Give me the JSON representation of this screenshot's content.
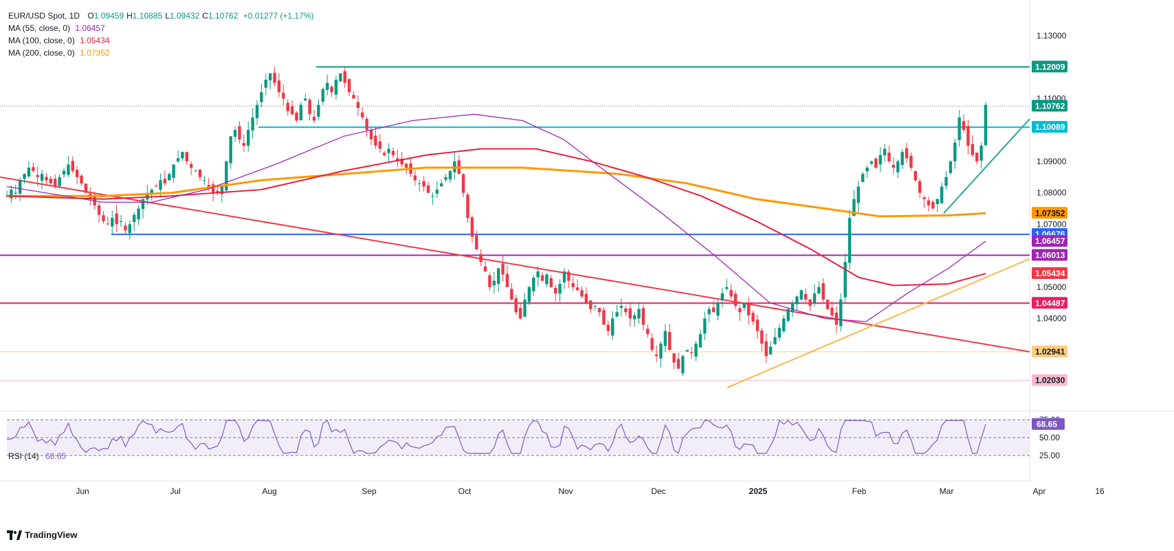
{
  "header": {
    "symbol": "EUR/USD Spot, 1D",
    "ohlc": [
      {
        "key": "O",
        "value": "1.09459"
      },
      {
        "key": "H",
        "value": "1.10885"
      },
      {
        "key": "L",
        "value": "1.09432"
      },
      {
        "key": "C",
        "value": "1.10762"
      }
    ],
    "change": "+0.01277 (+1.17%)",
    "color": "#089981"
  },
  "indicators": [
    {
      "label": "MA (55, close, 0)",
      "value": "1.06457",
      "color": "#9c27b0"
    },
    {
      "label": "MA (100, close, 0)",
      "value": "1.05434",
      "color": "#e91e3d"
    },
    {
      "label": "MA (200, close, 0)",
      "value": "1.07352",
      "color": "#ff9800"
    }
  ],
  "rsi": {
    "label": "RSI (14)",
    "value": "68.65",
    "color": "#7e57c2"
  },
  "brand": "TradingView",
  "chart_data": {
    "type": "candlestick",
    "instrument": "EUR/USD",
    "timeframe": "1D",
    "ylim": [
      1.018,
      1.135
    ],
    "price_ticks": [
      "1.13000",
      "1.11000",
      "1.09000",
      "1.08000",
      "1.07000",
      "1.05000",
      "1.04000"
    ],
    "time_ticks": [
      "Jun",
      "Jul",
      "Aug",
      "Sep",
      "Oct",
      "Nov",
      "Dec",
      "2025",
      "Feb",
      "Mar",
      "Apr",
      "16"
    ],
    "last_price": "1.10762",
    "levels": [
      {
        "value": "1.12009",
        "color": "#089981"
      },
      {
        "value": "1.10089",
        "color": "#00bcd4"
      },
      {
        "value": "1.06676",
        "color": "#2962ff"
      },
      {
        "value": "1.06013",
        "color": "#9c27b0"
      },
      {
        "value": "1.04487",
        "color": "#e91e63"
      },
      {
        "value": "1.02941",
        "color": "#ffcc80"
      },
      {
        "value": "1.02030",
        "color": "#f8bbd0"
      }
    ],
    "moving_averages": [
      {
        "period": 55,
        "value": "1.06457",
        "color": "#9c27b0"
      },
      {
        "period": 100,
        "value": "1.05434",
        "color": "#e91e3d"
      },
      {
        "period": 200,
        "value": "1.07352",
        "color": "#ff9800"
      }
    ],
    "rsi": {
      "period": 14,
      "value": "68.65",
      "ticks": [
        "75.00",
        "50.00",
        "25.00"
      ],
      "ylim": [
        20,
        80
      ]
    }
  }
}
